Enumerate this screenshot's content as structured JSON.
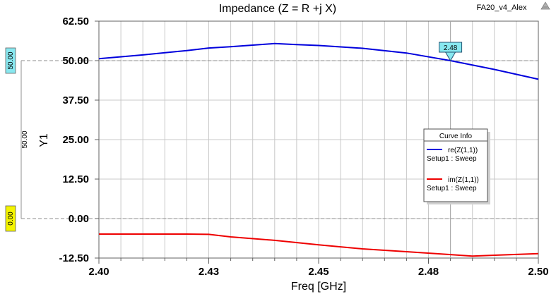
{
  "window": {
    "project_name": "FA20_v4_Alex"
  },
  "colors": {
    "re_series": "#0000dd",
    "im_series": "#ee0000",
    "marker_fill": "#88e8f0",
    "ref_cyan": "#88e8f0",
    "ref_yellow": "#f4f400",
    "grid": "#c8c8c8",
    "dashed": "#8c8c8c"
  },
  "chart_data": {
    "type": "line",
    "title": "Impedance (Z = R +j X)",
    "xlabel": "Freq [GHz]",
    "ylabel": "Y1",
    "xlim": [
      2.4,
      2.5
    ],
    "ylim": [
      -12.5,
      62.5
    ],
    "xtick_labels": [
      "2.40",
      "2.43",
      "2.45",
      "2.48",
      "2.50"
    ],
    "ytick_labels": [
      "62.50",
      "50.00",
      "37.50",
      "25.00",
      "12.50",
      "0.00",
      "-12.50"
    ],
    "ytick_values": [
      62.5,
      50.0,
      37.5,
      25.0,
      12.5,
      0.0,
      -12.5
    ],
    "grid": true,
    "legend": {
      "title": "Curve Info",
      "position": "center-right",
      "entries": [
        {
          "name": "re(Z(1,1))",
          "sub": "Setup1 : Sweep"
        },
        {
          "name": "im(Z(1,1))",
          "sub": "Setup1 : Sweep"
        }
      ]
    },
    "series": [
      {
        "name": "re(Z(1,1))",
        "x": [
          2.4,
          2.41,
          2.42,
          2.425,
          2.43,
          2.435,
          2.44,
          2.445,
          2.45,
          2.46,
          2.47,
          2.48,
          2.49,
          2.5
        ],
        "values": [
          50.6,
          51.8,
          53.2,
          54.0,
          54.4,
          54.9,
          55.4,
          55.1,
          54.8,
          53.9,
          52.4,
          50.0,
          47.2,
          44.1
        ]
      },
      {
        "name": "im(Z(1,1))",
        "x": [
          2.4,
          2.41,
          2.42,
          2.425,
          2.43,
          2.44,
          2.45,
          2.46,
          2.47,
          2.48,
          2.485,
          2.49,
          2.5
        ],
        "values": [
          -4.9,
          -4.9,
          -4.9,
          -5.0,
          -5.8,
          -6.9,
          -8.3,
          -9.6,
          -10.5,
          -11.4,
          -11.9,
          -11.6,
          -11.1
        ]
      }
    ],
    "marker": {
      "label": "2.48",
      "x": 2.48,
      "y": 50.0
    },
    "reference_lines": [
      {
        "label": "50.00",
        "y": 50.0,
        "color": "cyan"
      },
      {
        "label": "0.00",
        "y": 0.0,
        "color": "yellow"
      }
    ],
    "delta_label": "50.00"
  }
}
